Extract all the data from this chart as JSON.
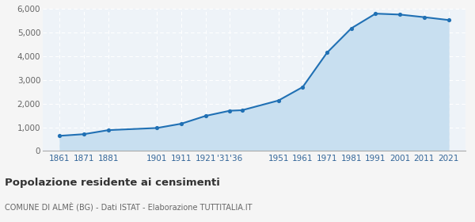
{
  "years": [
    1861,
    1871,
    1881,
    1901,
    1911,
    1921,
    1931,
    1936,
    1951,
    1961,
    1971,
    1981,
    1991,
    2001,
    2011,
    2021
  ],
  "population": [
    640,
    710,
    880,
    970,
    1150,
    1480,
    1700,
    1720,
    2130,
    2700,
    4150,
    5180,
    5800,
    5760,
    5650,
    5530
  ],
  "line_color": "#2070b4",
  "fill_color": "#c8dff0",
  "marker_color": "#2070b4",
  "plot_bg_color": "#eef3f8",
  "fig_bg_color": "#f5f5f5",
  "grid_color": "#ffffff",
  "title": "Popolazione residente ai censimenti",
  "subtitle": "COMUNE DI ALMÈ (BG) - Dati ISTAT - Elaborazione TUTTITALIA.IT",
  "title_color": "#333333",
  "subtitle_color": "#666666",
  "xlabel_color": "#336699",
  "ylabel_color": "#666666",
  "ylim": [
    0,
    6000
  ],
  "yticks": [
    0,
    1000,
    2000,
    3000,
    4000,
    5000,
    6000
  ],
  "tick_positions": [
    1861,
    1871,
    1881,
    1901,
    1911,
    1921,
    1931,
    1951,
    1961,
    1971,
    1981,
    1991,
    2001,
    2011,
    2021
  ],
  "tick_labels": [
    "1861",
    "1871",
    "1881",
    "1901",
    "1911",
    "1921",
    "'31'36",
    "1951",
    "1961",
    "1971",
    "1981",
    "1991",
    "2001",
    "2011",
    "2021"
  ],
  "xlim": [
    1854,
    2028
  ]
}
